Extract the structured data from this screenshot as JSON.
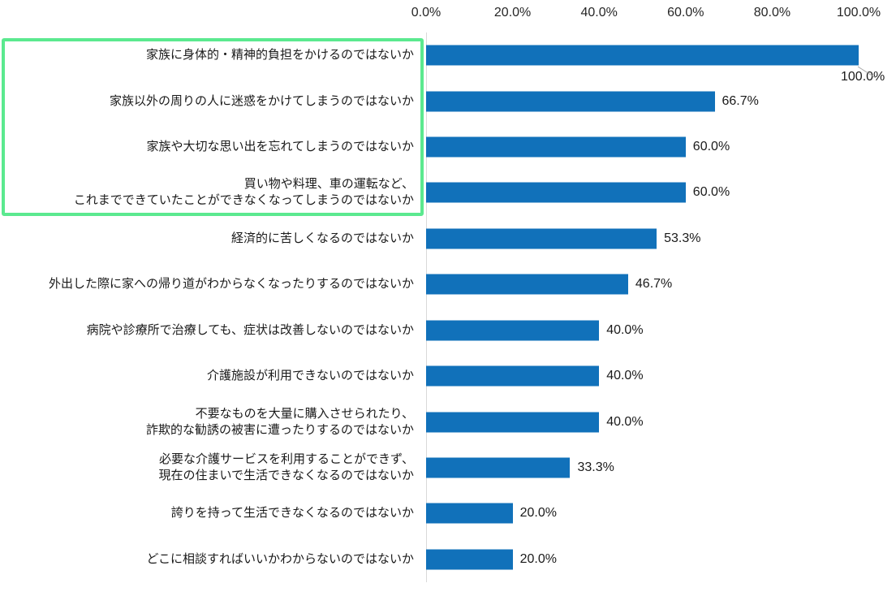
{
  "chart_data": {
    "type": "bar",
    "orientation": "horizontal",
    "title": "",
    "xlabel": "",
    "ylabel": "",
    "xlim": [
      0,
      100
    ],
    "grid": false,
    "legend": false,
    "x_ticks": [
      {
        "value": 0,
        "label": "0.0%"
      },
      {
        "value": 20,
        "label": "20.0%"
      },
      {
        "value": 40,
        "label": "40.0%"
      },
      {
        "value": 60,
        "label": "60.0%"
      },
      {
        "value": 80,
        "label": "80.0%"
      },
      {
        "value": 100,
        "label": "100.0%"
      }
    ],
    "categories": [
      "家族に身体的・精神的負担をかけるのではないか",
      "家族以外の周りの人に迷惑をかけてしまうのではないか",
      "家族や大切な思い出を忘れてしまうのではないか",
      "買い物や料理、車の運転など、\nこれまでできていたことができなくなってしまうのではないか",
      "経済的に苦しくなるのではないか",
      "外出した際に家への帰り道がわからなくなったりするのではないか",
      "病院や診療所で治療しても、症状は改善しないのではないか",
      "介護施設が利用できないのではないか",
      "不要なものを大量に購入させられたり、\n詐欺的な勧誘の被害に遭ったりするのではないか",
      "必要な介護サービスを利用することができず、\n現在の住まいで生活できなくなるのではないか",
      "誇りを持って生活できなくなるのではないか",
      "どこに相談すればいいかわからないのではないか"
    ],
    "values": [
      100.0,
      66.7,
      60.0,
      60.0,
      53.3,
      46.7,
      40.0,
      40.0,
      40.0,
      33.3,
      20.0,
      20.0
    ],
    "value_labels": [
      "100.0%",
      "66.7%",
      "60.0%",
      "60.0%",
      "53.3%",
      "46.7%",
      "40.0%",
      "40.0%",
      "40.0%",
      "33.3%",
      "20.0%",
      "20.0%"
    ],
    "callout_index": 0,
    "highlighted_rows": [
      0,
      1,
      2,
      3
    ],
    "colors": {
      "bar": "#1171BA",
      "highlight_border": "#5BE98F",
      "axis_line": "#D9D9D9",
      "leader_line": "#A6A6A6"
    }
  }
}
